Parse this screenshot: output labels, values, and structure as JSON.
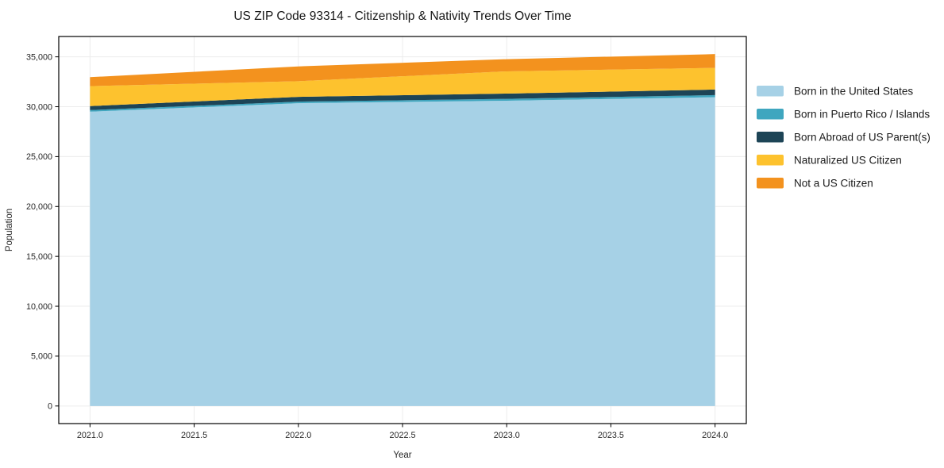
{
  "figure": {
    "background": "#ffffff",
    "plot_background": "#ffffff",
    "border_color": "#000000",
    "grid_color": "#ececec",
    "tick_color": "#000000",
    "text_color": "#1a1a1a"
  },
  "chart_data": {
    "type": "area",
    "stacked": true,
    "title": "US ZIP Code 93314 - Citizenship & Nativity Trends Over Time",
    "xlabel": "Year",
    "ylabel": "Population",
    "x": [
      2021,
      2022,
      2023,
      2024
    ],
    "series": [
      {
        "name": "Born in the United States",
        "color": "#a6d1e6",
        "values": [
          29500,
          30350,
          30600,
          30950
        ]
      },
      {
        "name": "Born in Puerto Rico / Islands",
        "color": "#3fa6bf",
        "values": [
          160,
          160,
          185,
          215
        ]
      },
      {
        "name": "Born Abroad of US Parent(s)",
        "color": "#1d4456",
        "values": [
          400,
          480,
          530,
          555
        ]
      },
      {
        "name": "Naturalized US Citizen",
        "color": "#fdc22e",
        "values": [
          2000,
          1570,
          2230,
          2170
        ]
      },
      {
        "name": "Not a US Citizen",
        "color": "#f3921e",
        "values": [
          900,
          1480,
          1220,
          1385
        ]
      }
    ],
    "totals": [
      32960,
      34040,
      34765,
      35275
    ],
    "xticks": {
      "values": [
        2021,
        2021.5,
        2022,
        2022.5,
        2023,
        2023.5,
        2024
      ],
      "labels": [
        "2021.0",
        "2021.5",
        "2022.0",
        "2022.5",
        "2023.0",
        "2023.5",
        "2024.0"
      ]
    },
    "yticks": {
      "values": [
        0,
        5000,
        10000,
        15000,
        20000,
        25000,
        30000,
        35000
      ],
      "labels": [
        "0",
        "5,000",
        "10,000",
        "15,000",
        "20,000",
        "25,000",
        "30,000",
        "35,000"
      ]
    },
    "xlim": [
      2020.85,
      2024.15
    ],
    "ylim": [
      -1764,
      37039
    ],
    "grid": true,
    "legend_position": "right-outside"
  }
}
